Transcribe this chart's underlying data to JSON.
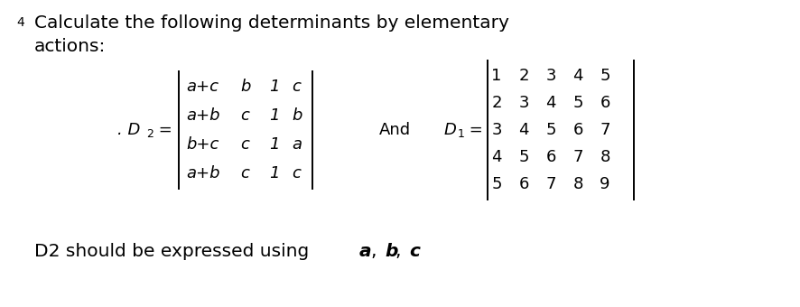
{
  "title_number": "4",
  "title_line1": "Calculate the following determinants by elementary",
  "title_line2": "actions:",
  "d2_matrix": [
    [
      "a+c",
      "b",
      "1",
      "c"
    ],
    [
      "a+b",
      "c",
      "1",
      "b"
    ],
    [
      "b+c",
      "c",
      "1",
      "a"
    ],
    [
      "a+b",
      "c",
      "1",
      "c"
    ]
  ],
  "d1_matrix": [
    [
      "1",
      "2",
      "3",
      "4",
      "5"
    ],
    [
      "2",
      "3",
      "4",
      "5",
      "6"
    ],
    [
      "3",
      "4",
      "5",
      "6",
      "7"
    ],
    [
      "4",
      "5",
      "6",
      "7",
      "8"
    ],
    [
      "5",
      "6",
      "7",
      "8",
      "9"
    ]
  ],
  "bg_color": "#ffffff",
  "text_color": "#000000",
  "title_fontsize": 14.5,
  "matrix_fontsize": 13,
  "label_fontsize": 13,
  "footer_fontsize": 14.5,
  "small_fontsize": 9,
  "lw": 1.4
}
